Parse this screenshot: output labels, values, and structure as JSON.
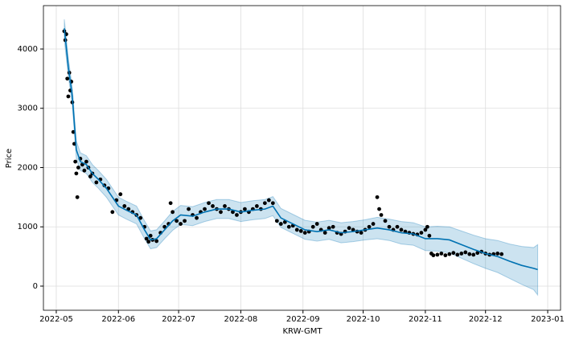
{
  "chart_data": {
    "type": "forecast",
    "x_label": "KRW-GMT",
    "y_label": "Price",
    "xlim": [
      -6.4,
      251.4
    ],
    "ylim": [
      -407,
      4732
    ],
    "xticks": [
      {
        "value": 0,
        "label": "2022-05"
      },
      {
        "value": 31,
        "label": "2022-06"
      },
      {
        "value": 61,
        "label": "2022-07"
      },
      {
        "value": 92,
        "label": "2022-08"
      },
      {
        "value": 123,
        "label": "2022-09"
      },
      {
        "value": 153,
        "label": "2022-10"
      },
      {
        "value": 184,
        "label": "2022-11"
      },
      {
        "value": 214,
        "label": "2022-12"
      },
      {
        "value": 245,
        "label": "2023-01"
      }
    ],
    "yticks": [
      0,
      1000,
      2000,
      3000,
      4000
    ],
    "grid": true,
    "series": [
      {
        "type": "scatter",
        "color": "#000000",
        "x": [
          4,
          4.5,
          5,
          5.5,
          6,
          6.5,
          7,
          7.5,
          8,
          8.5,
          9,
          9.5,
          10,
          10.5,
          11,
          12,
          13,
          14,
          15,
          16,
          17,
          18,
          20,
          22,
          24,
          26,
          28,
          30,
          32,
          34,
          36,
          38,
          40,
          42,
          44,
          45,
          46,
          47,
          48,
          50,
          52,
          54,
          56,
          57,
          58,
          60,
          62,
          64,
          66,
          68,
          70,
          72,
          74,
          76,
          78,
          80,
          82,
          84,
          86,
          88,
          90,
          92,
          94,
          96,
          98,
          100,
          102,
          104,
          106,
          108,
          110,
          112,
          114,
          116,
          118,
          120,
          122,
          124,
          126,
          128,
          130,
          132,
          134,
          136,
          138,
          140,
          142,
          144,
          146,
          148,
          150,
          152,
          154,
          156,
          158,
          160,
          161,
          162,
          164,
          166,
          168,
          170,
          172,
          174,
          176,
          178,
          180,
          182,
          184,
          185,
          186,
          187,
          188,
          190,
          192,
          194,
          196,
          198,
          200,
          202,
          204,
          206,
          208,
          210,
          212,
          214,
          216,
          218,
          220,
          222
        ],
        "values": [
          4300,
          4150,
          4250,
          3500,
          3200,
          3600,
          3300,
          3450,
          3100,
          2600,
          2400,
          2100,
          1900,
          1500,
          2000,
          2150,
          2050,
          1950,
          2100,
          2000,
          1850,
          1900,
          1750,
          1800,
          1700,
          1650,
          1250,
          1450,
          1550,
          1350,
          1300,
          1250,
          1200,
          1150,
          1000,
          800,
          750,
          850,
          780,
          760,
          900,
          1000,
          1050,
          1400,
          1250,
          1100,
          1050,
          1100,
          1300,
          1200,
          1150,
          1250,
          1300,
          1400,
          1350,
          1300,
          1250,
          1350,
          1300,
          1250,
          1200,
          1250,
          1300,
          1250,
          1300,
          1350,
          1300,
          1400,
          1450,
          1400,
          1100,
          1050,
          1080,
          1000,
          1020,
          950,
          930,
          900,
          920,
          1000,
          1050,
          950,
          900,
          980,
          1000,
          900,
          880,
          920,
          980,
          950,
          920,
          900,
          950,
          1000,
          1050,
          1500,
          1300,
          1200,
          1100,
          1000,
          950,
          1000,
          950,
          920,
          900,
          880,
          870,
          900,
          950,
          1000,
          850,
          550,
          520,
          530,
          550,
          520,
          540,
          560,
          530,
          550,
          570,
          540,
          530,
          560,
          580,
          550,
          530,
          540,
          550,
          540
        ]
      },
      {
        "type": "line",
        "color": "#0072b2",
        "x": [
          4,
          6,
          8,
          10,
          12,
          15,
          18,
          21,
          25,
          28,
          31,
          35,
          40,
          44,
          47,
          50,
          54,
          58,
          62,
          68,
          74,
          80,
          86,
          92,
          98,
          104,
          108,
          112,
          118,
          124,
          130,
          136,
          142,
          148,
          154,
          160,
          166,
          172,
          178,
          184,
          190,
          196,
          202,
          208,
          214,
          220,
          226,
          232,
          238,
          240
        ],
        "values": [
          4350,
          3700,
          3200,
          2300,
          2100,
          2050,
          1900,
          1800,
          1650,
          1500,
          1350,
          1280,
          1200,
          950,
          780,
          800,
          950,
          1100,
          1200,
          1180,
          1250,
          1300,
          1300,
          1250,
          1280,
          1300,
          1350,
          1150,
          1050,
          950,
          920,
          950,
          900,
          920,
          950,
          980,
          950,
          900,
          880,
          800,
          800,
          780,
          700,
          620,
          550,
          500,
          420,
          350,
          300,
          280
        ],
        "upper": [
          4500,
          3850,
          3350,
          2450,
          2250,
          2200,
          2050,
          1950,
          1800,
          1650,
          1500,
          1430,
          1350,
          1100,
          930,
          950,
          1100,
          1260,
          1360,
          1340,
          1410,
          1460,
          1460,
          1410,
          1440,
          1460,
          1510,
          1310,
          1210,
          1110,
          1080,
          1110,
          1070,
          1090,
          1120,
          1160,
          1130,
          1090,
          1070,
          1000,
          1010,
          1000,
          930,
          860,
          800,
          770,
          710,
          670,
          650,
          700
        ],
        "lower": [
          4150,
          3550,
          3050,
          2150,
          1950,
          1900,
          1750,
          1650,
          1500,
          1350,
          1200,
          1130,
          1050,
          800,
          630,
          650,
          800,
          940,
          1040,
          1020,
          1090,
          1140,
          1140,
          1090,
          1120,
          1140,
          1190,
          990,
          890,
          790,
          760,
          790,
          730,
          750,
          780,
          800,
          770,
          710,
          690,
          600,
          590,
          560,
          470,
          380,
          300,
          230,
          130,
          30,
          -60,
          -150
        ]
      }
    ]
  }
}
